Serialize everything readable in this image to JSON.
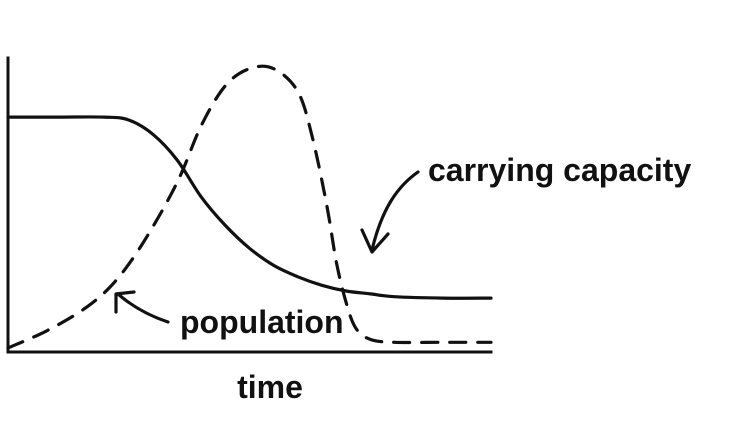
{
  "chart_data": {
    "type": "line",
    "title": "",
    "xlabel": "time",
    "ylabel": "",
    "xlim": [
      0,
      100
    ],
    "ylim": [
      0,
      100
    ],
    "grid": false,
    "legend": "none",
    "series": [
      {
        "name": "carrying capacity",
        "style": "solid",
        "x": [
          0,
          10,
          20,
          25,
          30,
          35,
          40,
          45,
          50,
          55,
          60,
          65,
          70,
          75,
          80,
          90,
          100
        ],
        "y": [
          81,
          81,
          81,
          80,
          75,
          66,
          53,
          43,
          35,
          29,
          25,
          22,
          20,
          19,
          18,
          17.5,
          17.5
        ]
      },
      {
        "name": "population",
        "style": "dashed",
        "x": [
          0,
          8,
          16,
          22,
          28,
          35,
          40,
          45,
          50,
          55,
          60,
          63,
          66,
          68,
          70,
          72,
          75,
          80,
          90,
          100
        ],
        "y": [
          0,
          6,
          14,
          23,
          37,
          58,
          78,
          92,
          98,
          98,
          90,
          74,
          50,
          30,
          16,
          7,
          3,
          2,
          2,
          2
        ]
      }
    ],
    "annotations": [
      {
        "text": "carrying capacity",
        "points_to": "carrying capacity"
      },
      {
        "text": "population",
        "points_to": "population"
      }
    ],
    "colors": {
      "ink": "#111111",
      "background": "#ffffff"
    }
  }
}
